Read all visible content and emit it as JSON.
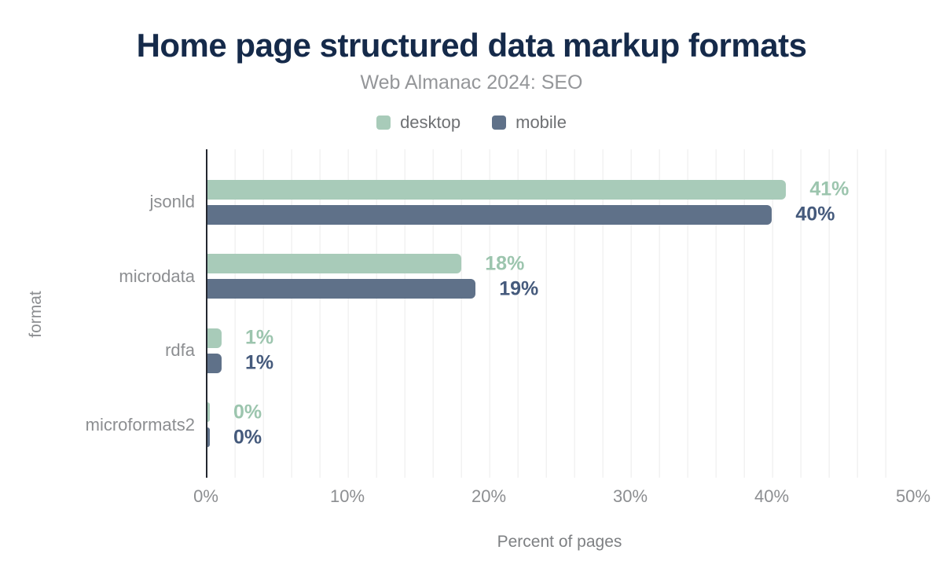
{
  "chart_data": {
    "type": "bar",
    "orientation": "horizontal",
    "title": "Home page structured data markup formats",
    "subtitle": "Web Almanac 2024: SEO",
    "categories": [
      "jsonld",
      "microdata",
      "rdfa",
      "microformats2"
    ],
    "series": [
      {
        "name": "desktop",
        "values": [
          41,
          18,
          1,
          0
        ],
        "bar_color": "#a8cbb9",
        "label_color": "#9cc5ae"
      },
      {
        "name": "mobile",
        "values": [
          40,
          19,
          1,
          0
        ],
        "bar_color": "#5f7189",
        "label_color": "#455a7c"
      }
    ],
    "value_label_suffix": "%",
    "xlabel": "Percent of pages",
    "ylabel": "format",
    "x_ticks": [
      "0%",
      "10%",
      "20%",
      "30%",
      "40%",
      "50%"
    ],
    "xlim": [
      0,
      50
    ],
    "grid": "light vertical minor gridlines every 2%",
    "legend_position": "top-center",
    "colors": {
      "title": "#152a4a",
      "subtitle": "#949699",
      "axis_line": "#23272f",
      "tick_text": "#8c8e91",
      "gridline": "#f2f2f2",
      "background": "#ffffff"
    }
  }
}
